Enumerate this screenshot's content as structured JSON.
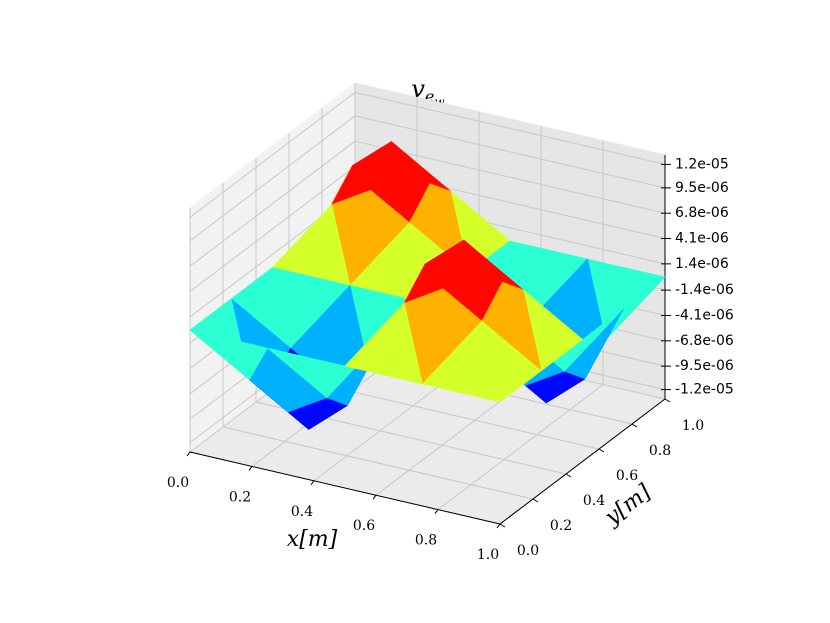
{
  "chart_data": {
    "type": "trisurf",
    "title": {
      "symbol": "v",
      "subscript": "e",
      "subsubscript": "w"
    },
    "xlabel": "x[m]",
    "ylabel": "y[m]",
    "x": [
      0,
      0.125,
      0.25,
      0.375,
      0.5,
      0.625,
      0.75,
      0.875,
      1
    ],
    "y": [
      0,
      0.125,
      0.25,
      0.375,
      0.5,
      0.625,
      0.75,
      0.875,
      1
    ],
    "z": [
      [
        0,
        0,
        0,
        0,
        0,
        0,
        0,
        0,
        0
      ],
      [
        0,
        -6e-06,
        -8.485e-06,
        -6e-06,
        0,
        6e-06,
        8.485e-06,
        6e-06,
        0
      ],
      [
        0,
        -8.485e-06,
        -1.2e-05,
        -8.485e-06,
        0,
        8.485e-06,
        1.2e-05,
        8.485e-06,
        0
      ],
      [
        0,
        -6e-06,
        -8.485e-06,
        -6e-06,
        0,
        6e-06,
        8.485e-06,
        6e-06,
        0
      ],
      [
        0,
        0,
        0,
        0,
        0,
        0,
        0,
        0,
        0
      ],
      [
        0,
        6e-06,
        8.485e-06,
        6e-06,
        0,
        -6e-06,
        -8.485e-06,
        -6e-06,
        0
      ],
      [
        0,
        8.485e-06,
        1.2e-05,
        8.485e-06,
        0,
        -8.485e-06,
        -1.2e-05,
        -8.485e-06,
        0
      ],
      [
        0,
        6e-06,
        8.485e-06,
        6e-06,
        0,
        -6e-06,
        -8.485e-06,
        -6e-06,
        0
      ],
      [
        0,
        0,
        0,
        0,
        0,
        0,
        0,
        0,
        0
      ]
    ],
    "colormap": "jet",
    "xlim": [
      0,
      1
    ],
    "ylim": [
      0,
      1
    ],
    "zlim": [
      -1.3e-05,
      1.3e-05
    ],
    "xticks": [
      {
        "value": 0,
        "label": "0.0"
      },
      0.2,
      0.4,
      0.6,
      0.8,
      {
        "value": 1,
        "label": "1.0"
      }
    ],
    "yticks": [
      {
        "value": 0,
        "label": "0.0"
      },
      0.2,
      0.4,
      0.6,
      0.8,
      {
        "value": 1,
        "label": "1.0"
      }
    ],
    "zticks": [
      {
        "value": 1.2e-05,
        "label": "1.2e-05"
      },
      {
        "value": 9.5e-06,
        "label": "9.5e-06"
      },
      {
        "value": 6.8e-06,
        "label": "6.8e-06"
      },
      {
        "value": 4.1e-06,
        "label": "4.1e-06"
      },
      {
        "value": 1.4e-06,
        "label": "1.4e-06"
      },
      {
        "value": -1.4e-06,
        "label": "-1.4e-06"
      },
      {
        "value": -4.1e-06,
        "label": "-4.1e-06"
      },
      {
        "value": -6.8e-06,
        "label": "-6.8e-06"
      },
      {
        "value": -9.5e-06,
        "label": "-9.5e-06"
      },
      {
        "value": -1.2e-05,
        "label": "-1.2e-05"
      }
    ],
    "grid": true
  }
}
